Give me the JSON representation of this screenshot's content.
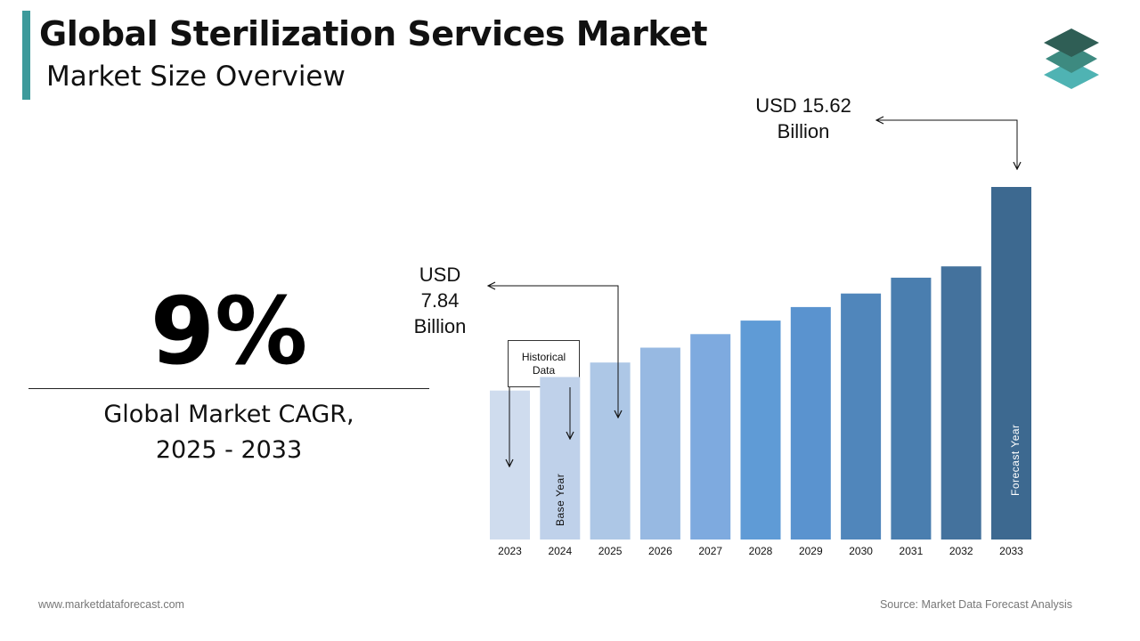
{
  "header": {
    "title": "Global Sterilization Services Market",
    "subtitle": "Market Size Overview",
    "logo_icon": "stacked-layers-icon"
  },
  "kpi": {
    "value": "9%",
    "label_line1": "Global Market CAGR,",
    "label_line2": "2025 - 2033"
  },
  "annotations": {
    "end_line1": "USD 15.62",
    "end_line2": "Billion",
    "base_line1": "USD",
    "base_line2": "7.84",
    "base_line3": "Billion",
    "historical_line1": "Historical",
    "historical_line2": "Data",
    "base_year_label": "Base Year",
    "forecast_year_label": "Forecast Year"
  },
  "footer": {
    "website": "www.marketdataforecast.com",
    "source": "Source: Market Data Forecast Analysis"
  },
  "chart_data": {
    "type": "bar",
    "categories": [
      "2023",
      "2024",
      "2025",
      "2026",
      "2027",
      "2028",
      "2029",
      "2030",
      "2031",
      "2032",
      "2033"
    ],
    "values": [
      6.6,
      7.2,
      7.84,
      8.5,
      9.1,
      9.7,
      10.3,
      10.9,
      11.6,
      12.1,
      15.62
    ],
    "colors": [
      "#cfdcee",
      "#bfd1ea",
      "#adc7e6",
      "#97b9e2",
      "#7eaadf",
      "#5f9bd6",
      "#5a93cf",
      "#5086bb",
      "#4a7eaf",
      "#44729d",
      "#3d6990"
    ],
    "title": "",
    "xlabel": "",
    "ylabel": "",
    "ylim": [
      0,
      16
    ],
    "grid": false,
    "legend": "none"
  }
}
